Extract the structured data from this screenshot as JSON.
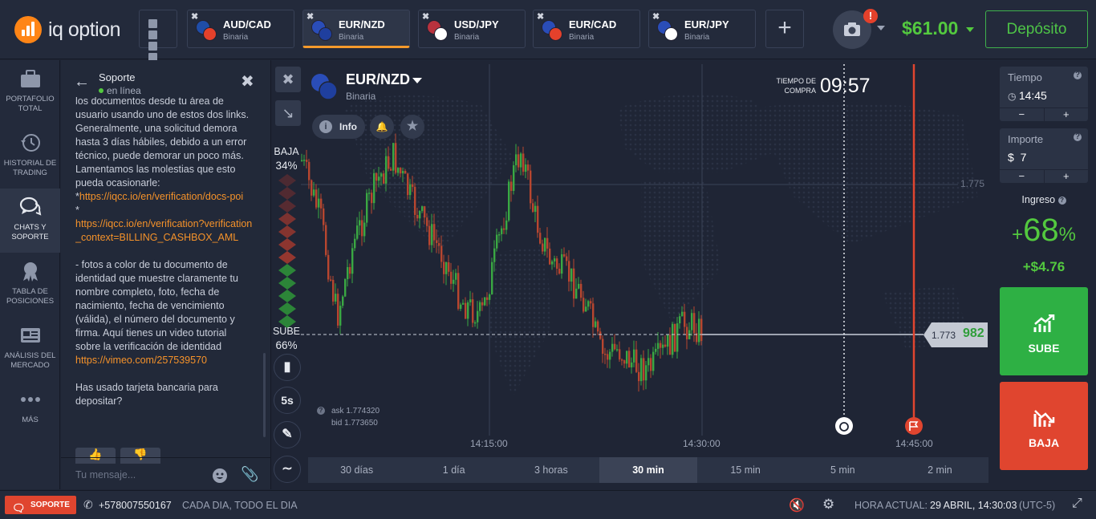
{
  "header": {
    "logo_text": "iq option",
    "tabs": [
      {
        "pair": "AUD/CAD",
        "type": "Binaria",
        "flag_a": "#1f4da8",
        "flag_b": "#e4412b"
      },
      {
        "pair": "EUR/NZD",
        "type": "Binaria",
        "flag_a": "#2a4db8",
        "flag_b": "#1f3f9e"
      },
      {
        "pair": "USD/JPY",
        "type": "Binaria",
        "flag_a": "#b8323e",
        "flag_b": "#ffffff"
      },
      {
        "pair": "EUR/CAD",
        "type": "Binaria",
        "flag_a": "#2a4db8",
        "flag_b": "#e4412b"
      },
      {
        "pair": "EUR/JPY",
        "type": "Binaria",
        "flag_a": "#2a4db8",
        "flag_b": "#ffffff"
      }
    ],
    "active_tab": 1,
    "camera_badge": "!",
    "balance": "$61.00",
    "deposit_label": "Depósito"
  },
  "nav": {
    "items": [
      {
        "label": "PORTAFOLIO TOTAL",
        "icon": "briefcase-icon"
      },
      {
        "label": "HISTORIAL DE TRADING",
        "icon": "history-icon"
      },
      {
        "label": "CHATS Y SOPORTE",
        "icon": "chat-icon"
      },
      {
        "label": "TABLA DE POSICIONES",
        "icon": "trophy-icon"
      },
      {
        "label": "ANÁLISIS DEL MERCADO",
        "icon": "news-icon"
      },
      {
        "label": "MÁS",
        "icon": "more-icon"
      }
    ]
  },
  "chat": {
    "title": "Soporte",
    "status": "en línea",
    "paragraph1": "los documentos desde tu área de usuario usando uno de estos dos links. Generalmente, una solicitud demora hasta 3 días hábiles, debido a un error técnico, puede demorar un poco más. Lamentamos las molestias que esto pueda ocasionarle:",
    "bullet1": "*",
    "link1": "https://iqcc.io/en/verification/docs-poi",
    "bullet2": "*",
    "link2": "https://iqcc.io/en/verification?verification_context=BILLING_CASHBOX_AML",
    "paragraph2": "- fotos a color de tu documento de identidad que muestre claramente tu nombre completo, foto, fecha de nacimiento, fecha de vencimiento (válida), el número del documento y firma. Aquí tienes un video tutorial sobre la verificación de identidad",
    "link3": "https://vimeo.com/257539570",
    "question": "Has usado tarjeta bancaria para depositar?",
    "input_placeholder": "Tu mensaje..."
  },
  "chart": {
    "asset": "EUR/NZD",
    "asset_type": "Binaria",
    "info_label": "Info",
    "timer_label": "TIEMPO DE COMPRA",
    "timer": "09:57",
    "baja_label": "BAJA",
    "baja_pct": "34%",
    "sube_label": "SUBE",
    "sube_pct": "66%",
    "ask": "ask 1.774320",
    "bid": "bid 1.773650",
    "price_prefix": "1.773",
    "price_suffix": "982",
    "level_label": "1.775",
    "x_labels": [
      "14:15:00",
      "14:30:00",
      "14:45:00"
    ],
    "candle_interval_label": "5s",
    "timeframes": [
      "30 días",
      "1 día",
      "3 horas",
      "30 min",
      "15 min",
      "5 min",
      "2 min"
    ],
    "active_timeframe": 3
  },
  "panel": {
    "time_label": "Tiempo",
    "time_value": "14:45",
    "amount_label": "Importe",
    "amount_currency": "$",
    "amount_value": "7",
    "minus": "−",
    "plus": "+",
    "income_label": "Ingreso",
    "income_pct_sign": "+",
    "income_pct": "68",
    "income_pct_unit": "%",
    "income_amount": "+$4.76",
    "buy_label": "SUBE",
    "sell_label": "BAJA"
  },
  "footer": {
    "support_label": "SOPORTE",
    "phone": "+578007550167",
    "hours": "CADA DIA, TODO EL DIA",
    "time_label": "HORA ACTUAL:",
    "time_value": "29 ABRIL, 14:30:03",
    "timezone": "(UTC-5)"
  },
  "colors": {
    "up": "#2eb044",
    "down": "#e0452f",
    "accent": "#f59a2b"
  }
}
